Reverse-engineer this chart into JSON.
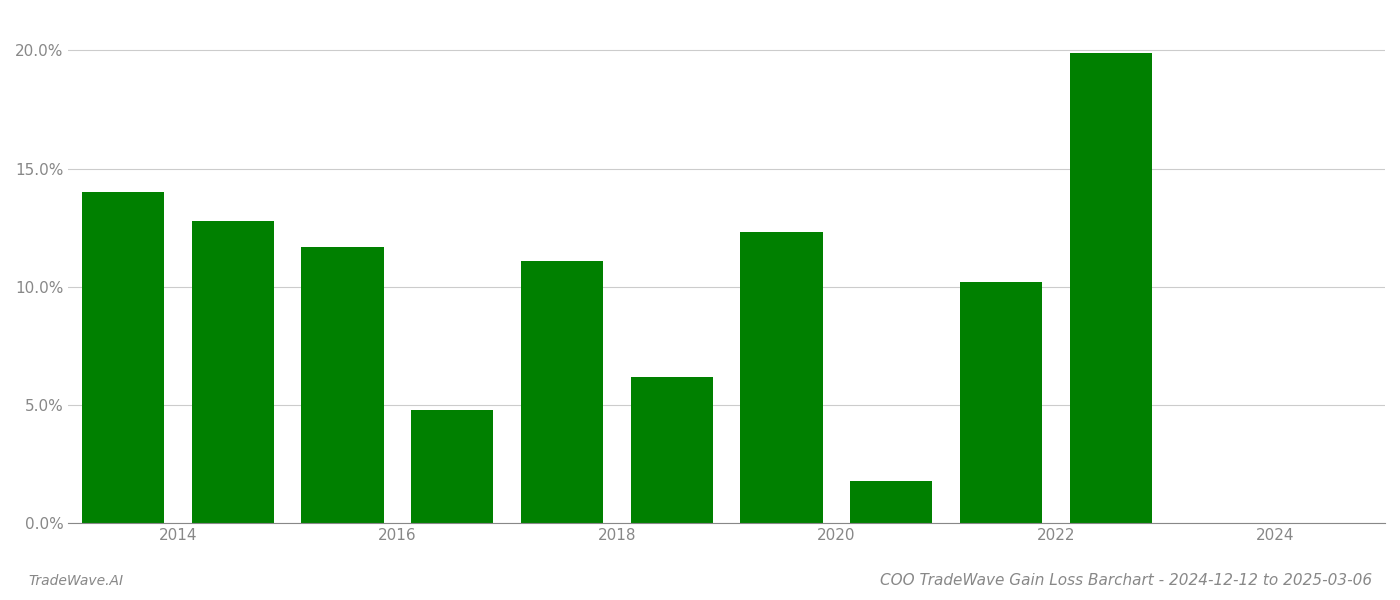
{
  "years": [
    2013,
    2014,
    2015,
    2016,
    2017,
    2018,
    2019,
    2020,
    2021,
    2022
  ],
  "values": [
    0.14,
    0.128,
    0.117,
    0.048,
    0.111,
    0.062,
    0.123,
    0.018,
    0.102,
    0.199
  ],
  "bar_color": "#008000",
  "background_color": "#ffffff",
  "title": "COO TradeWave Gain Loss Barchart - 2024-12-12 to 2025-03-06",
  "watermark": "TradeWave.AI",
  "ylim": [
    0,
    0.215
  ],
  "yticks": [
    0.0,
    0.05,
    0.1,
    0.15,
    0.2
  ],
  "ytick_labels": [
    "0.0%",
    "5.0%",
    "10.0%",
    "15.0%",
    "20.0%"
  ],
  "xtick_positions": [
    2013.5,
    2015.5,
    2017.5,
    2019.5,
    2021.5,
    2023.5
  ],
  "xtick_labels": [
    "2014",
    "2016",
    "2018",
    "2020",
    "2022",
    "2024"
  ],
  "xlim": [
    2012.5,
    2024.5
  ],
  "grid_color": "#cccccc",
  "axis_color": "#888888",
  "tick_color": "#888888",
  "title_fontsize": 11,
  "watermark_fontsize": 10,
  "bar_width": 0.75
}
